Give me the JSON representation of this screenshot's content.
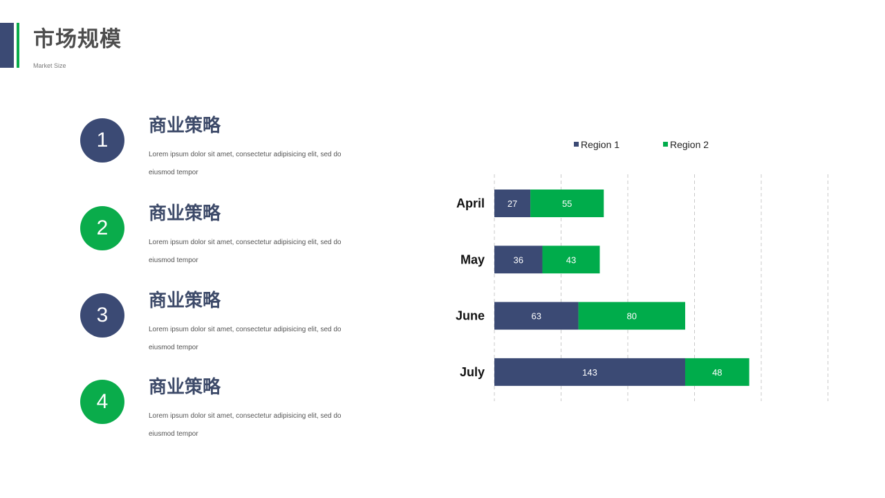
{
  "header": {
    "title": "市场规模",
    "subtitle": "Market Size"
  },
  "items": [
    {
      "number": "1",
      "title": "商业策略",
      "desc": "Lorem ipsum dolor sit amet,  consectetur adipisicing elit, sed do eiusmod  tempor",
      "color": "#3b4a74"
    },
    {
      "number": "2",
      "title": "商业策略",
      "desc": "Lorem ipsum dolor sit amet,  consectetur adipisicing elit, sed do eiusmod  tempor",
      "color": "#0aac4b"
    },
    {
      "number": "3",
      "title": "商业策略",
      "desc": "Lorem ipsum dolor sit amet,  consectetur adipisicing elit, sed do eiusmod  tempor",
      "color": "#3b4a74"
    },
    {
      "number": "4",
      "title": "商业策略",
      "desc": "Lorem ipsum dolor sit amet,  consectetur adipisicing elit, sed do eiusmod  tempor",
      "color": "#0aac4b"
    }
  ],
  "chart_data": {
    "type": "bar",
    "orientation": "horizontal",
    "stacked": true,
    "categories": [
      "April",
      "May",
      "June",
      "July"
    ],
    "series": [
      {
        "name": "Region 1",
        "values": [
          27,
          36,
          63,
          143
        ],
        "color": "#3b4a74"
      },
      {
        "name": "Region 2",
        "values": [
          55,
          43,
          80,
          48
        ],
        "color": "#00ac4b"
      }
    ],
    "xlim": [
      0,
      250
    ],
    "grid": true,
    "legend_position": "top",
    "data_labels": true
  }
}
